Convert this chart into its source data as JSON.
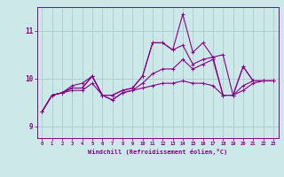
{
  "xlabel": "Windchill (Refroidissement éolien,°C)",
  "bg_color": "#cce8e8",
  "grid_color": "#aacccc",
  "line_color": "#880088",
  "x_ticks": [
    0,
    1,
    2,
    3,
    4,
    5,
    6,
    7,
    8,
    9,
    10,
    11,
    12,
    13,
    14,
    15,
    16,
    17,
    18,
    19,
    20,
    21,
    22,
    23
  ],
  "ylim": [
    8.75,
    11.5
  ],
  "xlim": [
    -0.5,
    23.5
  ],
  "yticks": [
    9,
    10,
    11
  ],
  "series": [
    [
      9.3,
      9.65,
      9.7,
      9.85,
      9.9,
      10.05,
      9.65,
      9.65,
      9.75,
      9.8,
      10.05,
      10.75,
      10.75,
      10.6,
      11.35,
      10.55,
      10.75,
      10.45,
      10.5,
      9.65,
      10.25,
      9.95,
      9.95,
      9.95
    ],
    [
      9.3,
      9.65,
      9.7,
      9.8,
      9.8,
      10.05,
      9.65,
      9.65,
      9.75,
      9.8,
      10.05,
      10.75,
      10.75,
      10.6,
      10.7,
      10.3,
      10.4,
      10.45,
      9.65,
      9.65,
      10.25,
      9.95,
      9.95,
      9.95
    ],
    [
      9.3,
      9.65,
      9.7,
      9.8,
      9.8,
      10.05,
      9.65,
      9.55,
      9.7,
      9.75,
      9.9,
      10.1,
      10.2,
      10.2,
      10.4,
      10.2,
      10.3,
      10.4,
      9.65,
      9.65,
      9.85,
      9.95,
      9.95,
      9.95
    ],
    [
      9.3,
      9.65,
      9.7,
      9.75,
      9.75,
      9.9,
      9.65,
      9.55,
      9.7,
      9.75,
      9.8,
      9.85,
      9.9,
      9.9,
      9.95,
      9.9,
      9.9,
      9.85,
      9.65,
      9.65,
      9.75,
      9.9,
      9.95,
      9.95
    ]
  ]
}
